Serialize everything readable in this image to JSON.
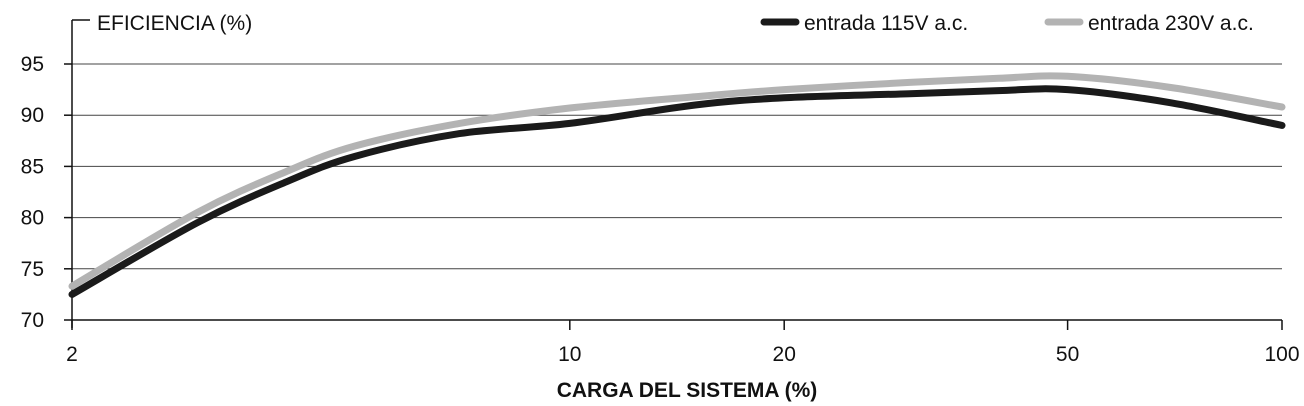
{
  "chart_data": {
    "type": "line",
    "title": "EFICIENCIA (%)",
    "xlabel": "CARGA DEL SISTEMA (%)",
    "ylabel": "",
    "x_scale": "log",
    "xlim": [
      2,
      100
    ],
    "ylim": [
      70,
      95
    ],
    "xticks": [
      2,
      10,
      20,
      50,
      100
    ],
    "yticks": [
      70,
      75,
      80,
      85,
      90,
      95
    ],
    "grid": "horizontal",
    "legend_position": "top-right",
    "series": [
      {
        "name": "entrada 115V a.c.",
        "color": "#1a1a1a",
        "points": [
          [
            2,
            72.5
          ],
          [
            3,
            79.5
          ],
          [
            4,
            83.5
          ],
          [
            5,
            86.0
          ],
          [
            7,
            88.2
          ],
          [
            10,
            89.2
          ],
          [
            15,
            91.0
          ],
          [
            20,
            91.7
          ],
          [
            30,
            92.1
          ],
          [
            40,
            92.4
          ],
          [
            50,
            92.5
          ],
          [
            70,
            91.2
          ],
          [
            100,
            89.0
          ]
        ]
      },
      {
        "name": "entrada 230V a.c.",
        "color": "#b3b3b3",
        "points": [
          [
            2,
            73.3
          ],
          [
            3,
            80.5
          ],
          [
            4,
            84.5
          ],
          [
            5,
            87.0
          ],
          [
            7,
            89.2
          ],
          [
            10,
            90.7
          ],
          [
            15,
            91.8
          ],
          [
            20,
            92.5
          ],
          [
            30,
            93.2
          ],
          [
            40,
            93.6
          ],
          [
            50,
            93.8
          ],
          [
            70,
            92.7
          ],
          [
            100,
            90.8
          ]
        ]
      }
    ]
  }
}
